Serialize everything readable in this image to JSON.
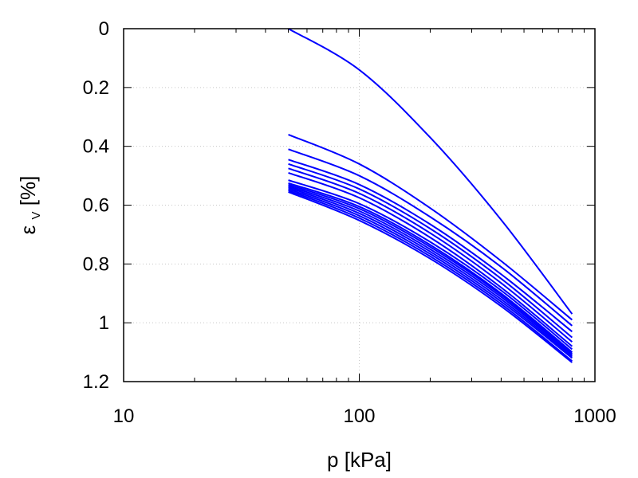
{
  "chart_data": {
    "type": "line",
    "xlabel": "p [kPa]",
    "ylabel": "εv [%]",
    "ylabel_main": "ε",
    "ylabel_sub": "V",
    "ylabel_unit": "[%]",
    "x_scale": "log",
    "xlim": [
      10,
      1000
    ],
    "ylim": [
      0,
      1.2
    ],
    "y_inverted": true,
    "grid": true,
    "line_color": "#0000ff",
    "x_ticks": [
      10,
      100,
      1000
    ],
    "x_tick_labels": [
      "10",
      "100",
      "1000"
    ],
    "y_ticks": [
      0,
      0.2,
      0.4,
      0.6,
      0.8,
      1.0,
      1.2
    ],
    "y_tick_labels": [
      "0",
      "0.2",
      "0.4",
      "0.6",
      "0.8",
      "1",
      "1.2"
    ],
    "series": [
      {
        "x": [
          50,
          100,
          200,
          400,
          800
        ],
        "y": [
          0.0,
          0.14,
          0.37,
          0.65,
          0.97
        ]
      },
      {
        "x": [
          50,
          100,
          200,
          400,
          800
        ],
        "y": [
          0.36,
          0.46,
          0.61,
          0.79,
          0.99
        ]
      },
      {
        "x": [
          50,
          100,
          200,
          400,
          800
        ],
        "y": [
          0.41,
          0.5,
          0.64,
          0.81,
          1.01
        ]
      },
      {
        "x": [
          50,
          100,
          200,
          400,
          800
        ],
        "y": [
          0.445,
          0.53,
          0.665,
          0.835,
          1.03
        ]
      },
      {
        "x": [
          50,
          100,
          200,
          400,
          800
        ],
        "y": [
          0.46,
          0.545,
          0.68,
          0.85,
          1.05
        ]
      },
      {
        "x": [
          50,
          100,
          200,
          400,
          800
        ],
        "y": [
          0.475,
          0.56,
          0.695,
          0.865,
          1.065
        ]
      },
      {
        "x": [
          50,
          100,
          200,
          400,
          800
        ],
        "y": [
          0.49,
          0.575,
          0.71,
          0.88,
          1.08
        ]
      },
      {
        "x": [
          50,
          100,
          200,
          400,
          800
        ],
        "y": [
          0.515,
          0.595,
          0.725,
          0.89,
          1.09
        ]
      },
      {
        "x": [
          50,
          100,
          200,
          400,
          800
        ],
        "y": [
          0.525,
          0.605,
          0.735,
          0.9,
          1.1
        ]
      },
      {
        "x": [
          50,
          100,
          200,
          400,
          800
        ],
        "y": [
          0.53,
          0.612,
          0.742,
          0.905,
          1.105
        ]
      },
      {
        "x": [
          50,
          100,
          200,
          400,
          800
        ],
        "y": [
          0.535,
          0.62,
          0.75,
          0.912,
          1.11
        ]
      },
      {
        "x": [
          50,
          100,
          200,
          400,
          800
        ],
        "y": [
          0.54,
          0.628,
          0.758,
          0.92,
          1.115
        ]
      },
      {
        "x": [
          50,
          100,
          200,
          400,
          800
        ],
        "y": [
          0.545,
          0.636,
          0.766,
          0.928,
          1.12
        ]
      },
      {
        "x": [
          50,
          100,
          200,
          400,
          800
        ],
        "y": [
          0.55,
          0.644,
          0.774,
          0.936,
          1.13
        ]
      },
      {
        "x": [
          50,
          100,
          200,
          400,
          800
        ],
        "y": [
          0.555,
          0.652,
          0.782,
          0.944,
          1.135
        ]
      }
    ]
  }
}
